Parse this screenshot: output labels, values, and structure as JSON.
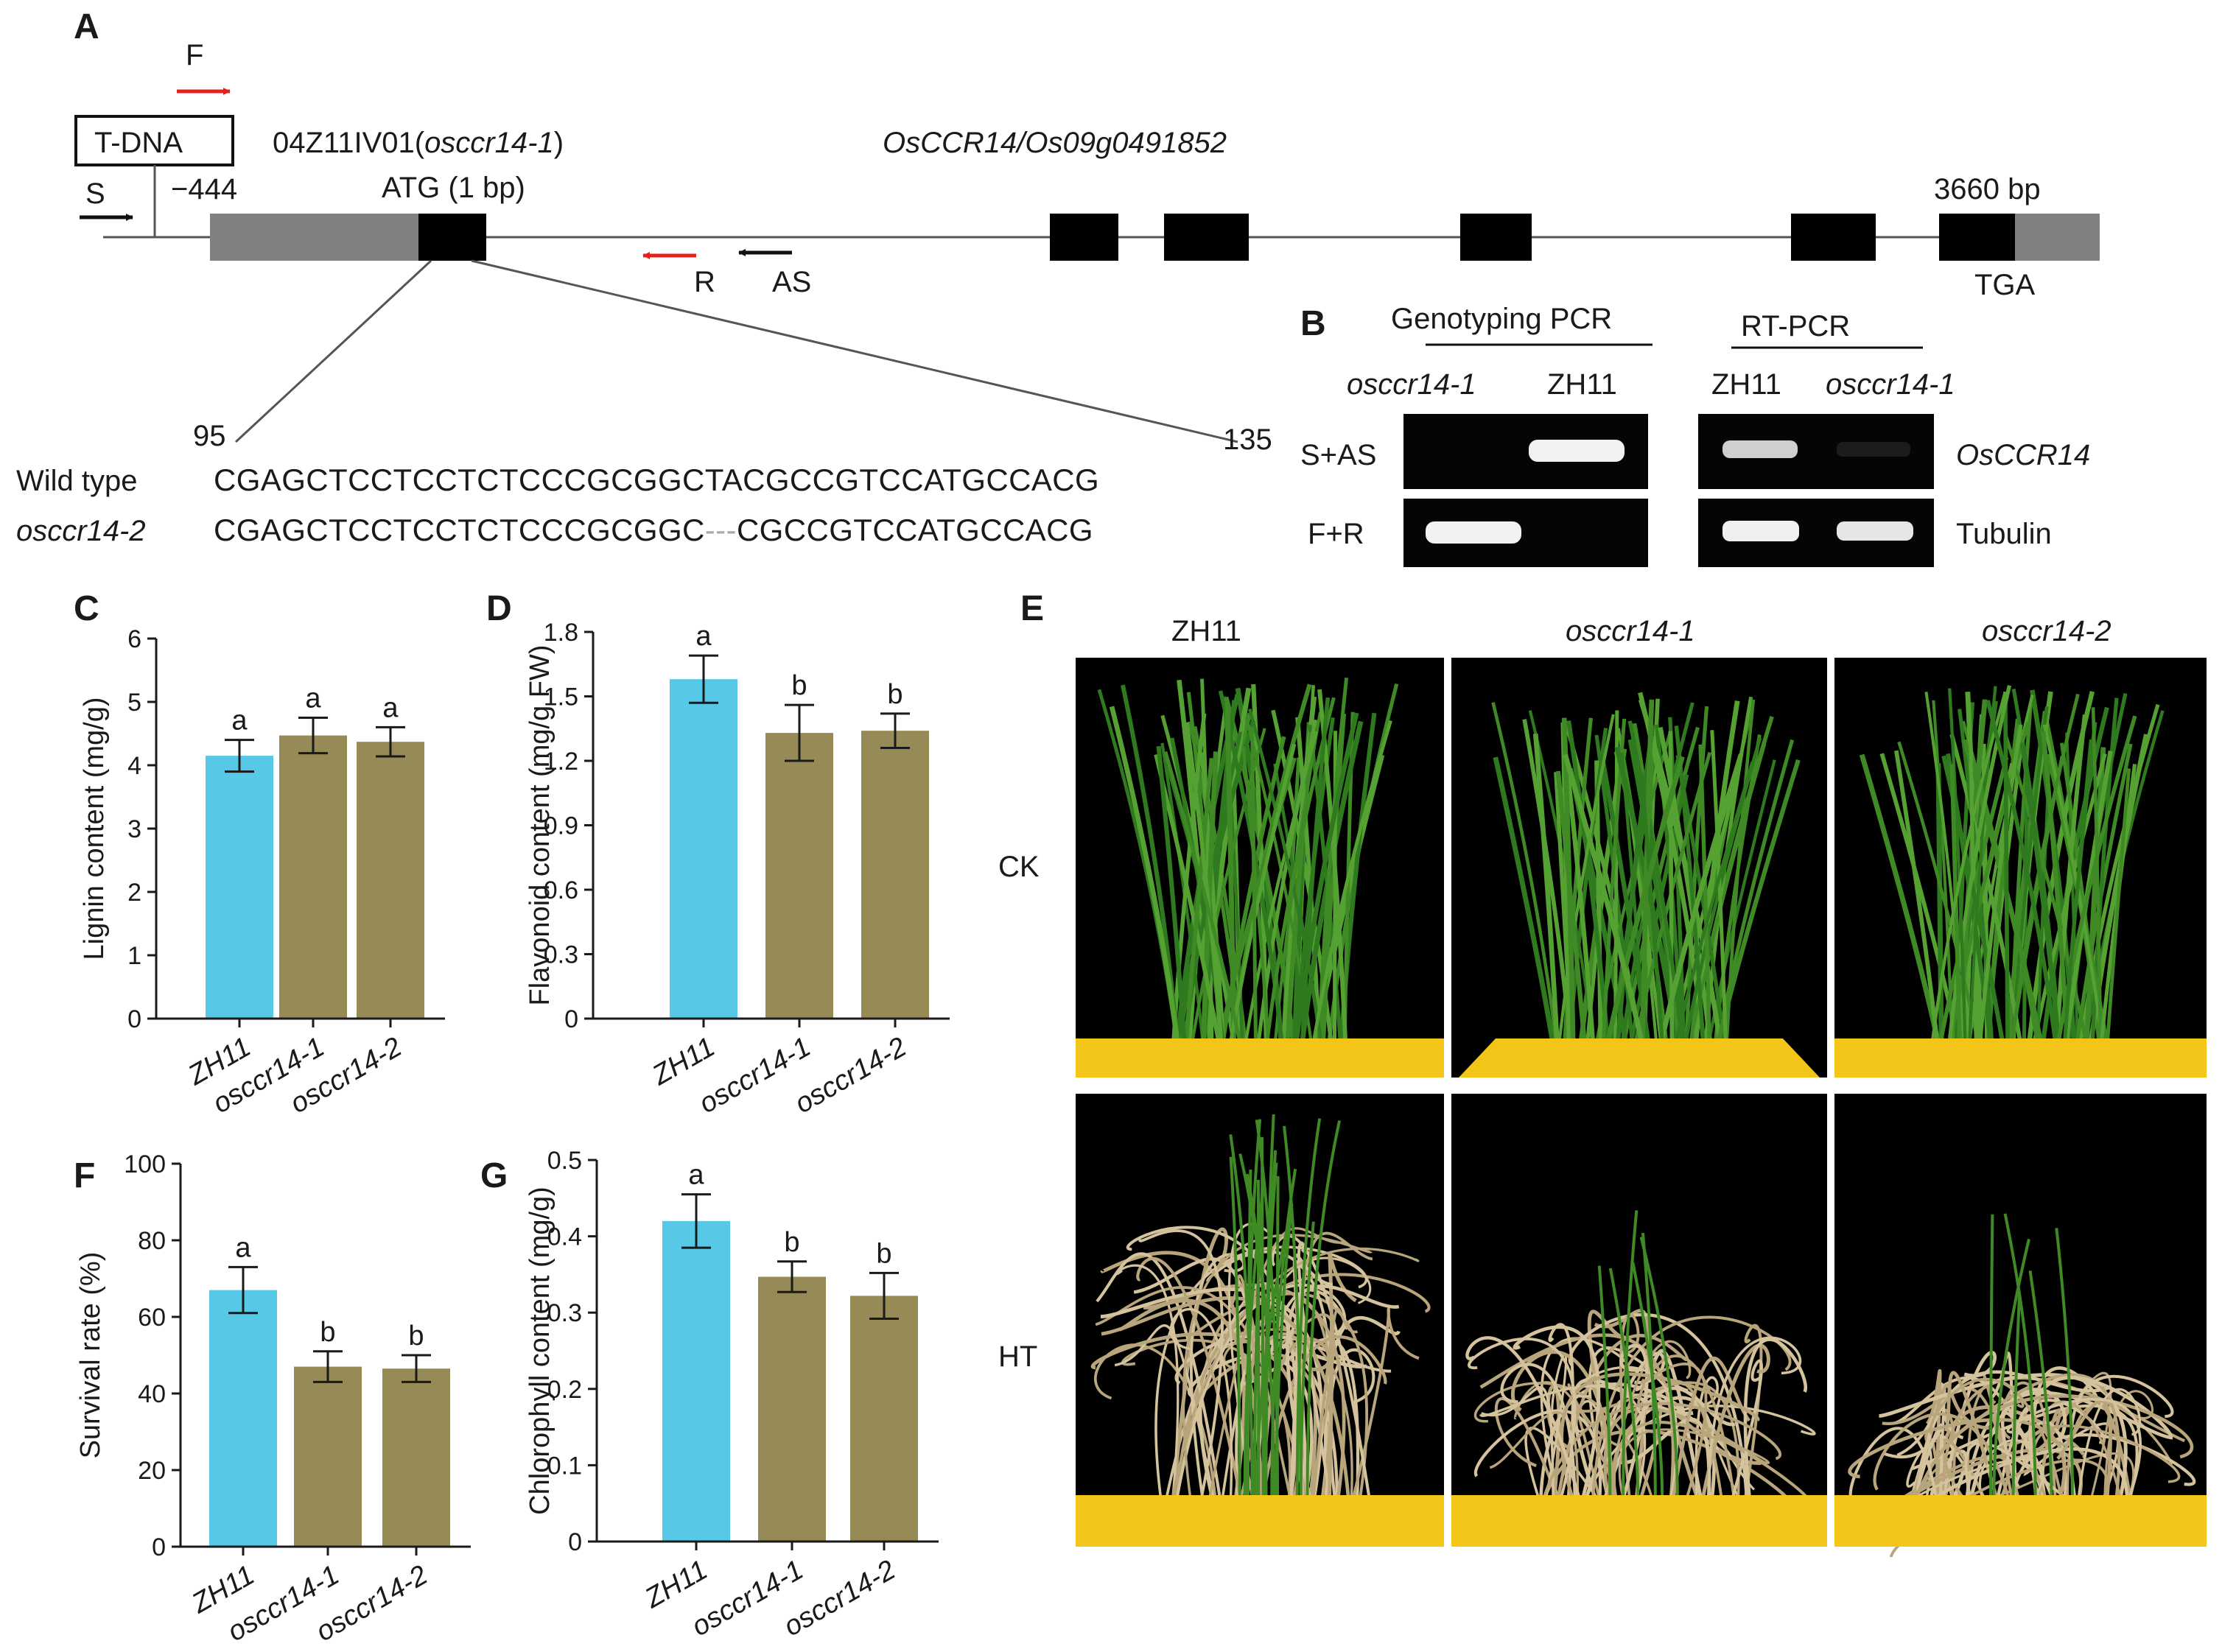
{
  "panels": {
    "A": {
      "label": "A",
      "tdna_label": "T-DNA",
      "line_label_prefix": "04Z11IV01(",
      "line_label_italic": "osccr14-1",
      "line_label_suffix": ")",
      "gene_label": "OsCCR14/Os09g0491852",
      "pos_minus": "−444",
      "atg_label": "ATG (1 bp)",
      "end_label": "3660 bp",
      "tga_label": "TGA",
      "primer_F": "F",
      "primer_S": "S",
      "primer_R": "R",
      "primer_AS": "AS",
      "seq_start": "95",
      "seq_end": "135",
      "seq_rows": [
        {
          "name": "Wild type",
          "italic": false,
          "sequence": "CGAGCTCCTCCTCTCCCGCGGCTACGCCGTCCATGCCACG"
        },
        {
          "name": "osccr14-2",
          "italic": true,
          "sequence_left": "CGAGCTCCTCCTCTCCCGCGGC",
          "gap": "---",
          "sequence_right": "CGCCGTCCATGCCACG"
        }
      ]
    },
    "B": {
      "label": "B",
      "genotyping_title": "Genotyping PCR",
      "rtpcr_title": "RT-PCR",
      "geno_lanes": [
        "osccr14-1",
        "ZH11"
      ],
      "rt_lanes": [
        "ZH11",
        "osccr14-1"
      ],
      "geno_rows": [
        "S+AS",
        "F+R"
      ],
      "rt_rows": [
        "OsCCR14",
        "Tubulin"
      ]
    },
    "E": {
      "label": "E",
      "columns": [
        "ZH11",
        "osccr14-1",
        "osccr14-2"
      ],
      "rows": [
        "CK",
        "HT"
      ]
    }
  },
  "chart_data": [
    {
      "panel": "C",
      "type": "bar",
      "categories": [
        "ZH11",
        "osccr14-1",
        "osccr14-2"
      ],
      "values": [
        4.15,
        4.47,
        4.37
      ],
      "errors": [
        0.25,
        0.28,
        0.23
      ],
      "letters": [
        "a",
        "a",
        "a"
      ],
      "ylabel": "Lignin content (mg/g)",
      "ylim": [
        0,
        6
      ],
      "yticks": [
        "0",
        "1",
        "2",
        "3",
        "4",
        "5",
        "6"
      ],
      "colors": [
        "#57c8e6",
        "#968a57",
        "#968a57"
      ]
    },
    {
      "panel": "D",
      "type": "bar",
      "categories": [
        "ZH11",
        "osccr14-1",
        "osccr14-2"
      ],
      "values": [
        1.58,
        1.33,
        1.34
      ],
      "errors": [
        0.11,
        0.13,
        0.08
      ],
      "letters": [
        "a",
        "b",
        "b"
      ],
      "ylabel": "Flavonoid content (mg/g FW)",
      "ylim": [
        0,
        1.8
      ],
      "yticks": [
        "0",
        "0.3",
        "0.6",
        "0.9",
        "1.2",
        "1.5",
        "1.8"
      ],
      "colors": [
        "#57c8e6",
        "#968a57",
        "#968a57"
      ]
    },
    {
      "panel": "F",
      "type": "bar",
      "categories": [
        "ZH11",
        "osccr14-1",
        "osccr14-2"
      ],
      "values": [
        67,
        47,
        46.5
      ],
      "errors": [
        6,
        4,
        3.5
      ],
      "letters": [
        "a",
        "b",
        "b"
      ],
      "ylabel": "Survival rate (%)",
      "ylim": [
        0,
        100
      ],
      "yticks": [
        "0",
        "20",
        "40",
        "60",
        "80",
        "100"
      ],
      "colors": [
        "#57c8e6",
        "#968a57",
        "#968a57"
      ]
    },
    {
      "panel": "G",
      "type": "bar",
      "categories": [
        "ZH11",
        "osccr14-1",
        "osccr14-2"
      ],
      "values": [
        0.42,
        0.347,
        0.322
      ],
      "errors": [
        0.035,
        0.02,
        0.03
      ],
      "letters": [
        "a",
        "b",
        "b"
      ],
      "ylabel": "Chlorophyll content (mg/g)",
      "ylim": [
        0,
        0.5
      ],
      "yticks": [
        "0",
        "0.1",
        "0.2",
        "0.3",
        "0.4",
        "0.5"
      ],
      "colors": [
        "#57c8e6",
        "#968a57",
        "#968a57"
      ]
    }
  ]
}
